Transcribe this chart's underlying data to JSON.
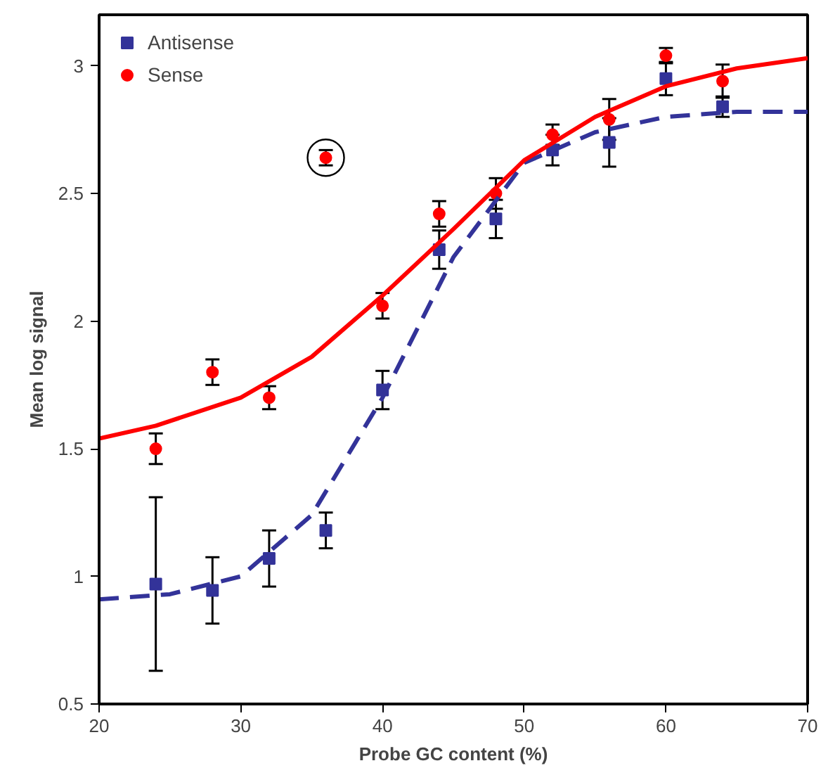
{
  "chart_data": {
    "type": "scatter",
    "xlabel": "Probe GC content (%)",
    "ylabel": "Mean log signal",
    "x": [
      24,
      28,
      32,
      36,
      40,
      44,
      48,
      52,
      56,
      60,
      64
    ],
    "xlim": [
      20,
      70
    ],
    "xticks": [
      20,
      30,
      40,
      50,
      60,
      70
    ],
    "ylim": [
      0.5,
      3.2
    ],
    "yticks": [
      0.5,
      1,
      1.5,
      2,
      2.5,
      3
    ],
    "grid": false,
    "legend": "top left",
    "series": [
      {
        "name": "Antisense",
        "color": "#333399",
        "marker": "square",
        "values": [
          0.97,
          0.945,
          1.07,
          1.18,
          1.73,
          2.28,
          2.4,
          2.67,
          2.7,
          2.95,
          2.84
        ],
        "errors": [
          0.34,
          0.13,
          0.11,
          0.07,
          0.075,
          0.075,
          0.075,
          0.06,
          0.095,
          0.065,
          0.04
        ]
      },
      {
        "name": "Sense",
        "color": "#ff0000",
        "marker": "circle",
        "values": [
          1.5,
          1.8,
          1.7,
          2.64,
          2.06,
          2.42,
          2.5,
          2.73,
          2.79,
          3.04,
          2.94
        ],
        "errors": [
          0.06,
          0.05,
          0.045,
          0.03,
          0.05,
          0.05,
          0.06,
          0.04,
          0.08,
          0.03,
          0.065
        ]
      },
      {
        "type": "line",
        "color": "#333399",
        "line_style": "dashed",
        "x": [
          20,
          25,
          30,
          35,
          40,
          45,
          50,
          55,
          60,
          65,
          70
        ],
        "values": [
          0.91,
          0.93,
          1.0,
          1.24,
          1.7,
          2.25,
          2.62,
          2.74,
          2.8,
          2.82,
          2.82
        ]
      },
      {
        "type": "line",
        "color": "#ff0000",
        "line_style": "solid",
        "x": [
          20,
          24,
          30,
          35,
          40,
          45,
          50,
          55,
          60,
          65,
          70
        ],
        "values": [
          1.54,
          1.59,
          1.7,
          1.86,
          2.1,
          2.36,
          2.63,
          2.8,
          2.92,
          2.99,
          3.03
        ]
      }
    ]
  }
}
